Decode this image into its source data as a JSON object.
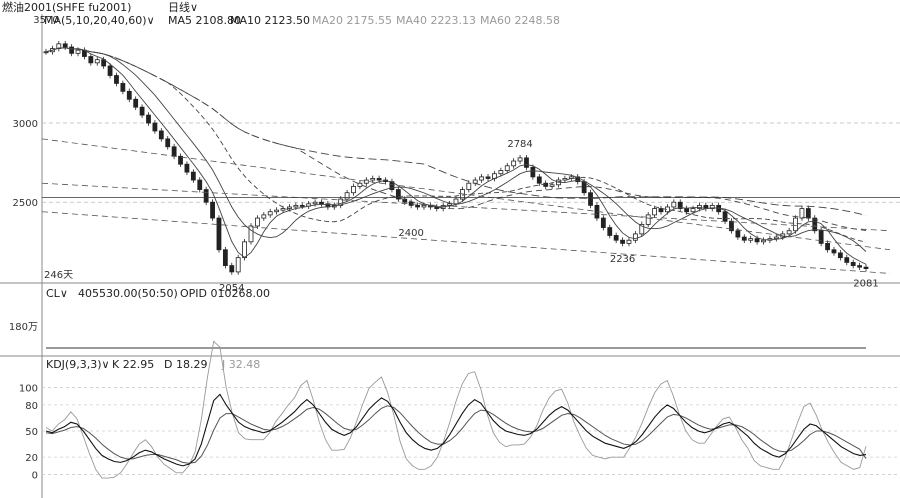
{
  "header": {
    "symbol": "燃油2001(SHFE fu2001)",
    "period": "日线",
    "ma_params": "MA(5,10,20,40,60)",
    "ma5": "MA5 2108.80",
    "ma10": "MA10 2123.50",
    "ma20": "MA20 2175.55",
    "ma40": "MA40 2223.13",
    "ma60": "MA60 2248.58"
  },
  "oi_panel": {
    "title": "CL",
    "value_text": "405530.00(50:50)",
    "opid": "OPID 010268.00",
    "unit_tick": "180万"
  },
  "kdj_panel": {
    "title": "KDJ(9,3,3)",
    "k": "K 22.95",
    "d": "D 18.29",
    "j": "J 32.48"
  },
  "chart_data": {
    "type": "line",
    "price_panel": {
      "ylim": [
        1990,
        3600
      ],
      "y_ticks": [
        3000,
        2500
      ],
      "annotations": [
        {
          "label": "3570",
          "value": 3570
        },
        {
          "label": "2054",
          "value": 2054
        },
        {
          "label": "2400",
          "value": 2400
        },
        {
          "label": "2784",
          "value": 2784
        },
        {
          "label": "2236",
          "value": 2236
        },
        {
          "label": "2081",
          "value": 2081
        },
        {
          "label": "246天",
          "value": null
        }
      ],
      "close": [
        3450,
        3470,
        3500,
        3480,
        3440,
        3460,
        3420,
        3380,
        3400,
        3360,
        3300,
        3250,
        3200,
        3150,
        3100,
        3050,
        3000,
        2950,
        2900,
        2850,
        2790,
        2740,
        2690,
        2640,
        2580,
        2500,
        2400,
        2200,
        2100,
        2060,
        2150,
        2250,
        2350,
        2400,
        2420,
        2440,
        2450,
        2460,
        2470,
        2480,
        2475,
        2490,
        2500,
        2490,
        2470,
        2480,
        2520,
        2560,
        2600,
        2620,
        2640,
        2650,
        2640,
        2630,
        2580,
        2520,
        2500,
        2480,
        2470,
        2480,
        2470,
        2460,
        2480,
        2490,
        2520,
        2580,
        2620,
        2640,
        2660,
        2650,
        2680,
        2700,
        2730,
        2760,
        2780,
        2720,
        2660,
        2620,
        2600,
        2610,
        2640,
        2650,
        2660,
        2630,
        2560,
        2480,
        2400,
        2340,
        2290,
        2260,
        2240,
        2260,
        2300,
        2360,
        2420,
        2460,
        2440,
        2470,
        2500,
        2460,
        2440,
        2460,
        2480,
        2460,
        2480,
        2440,
        2380,
        2320,
        2280,
        2260,
        2270,
        2250,
        2260,
        2270,
        2280,
        2300,
        2320,
        2400,
        2460,
        2400,
        2320,
        2240,
        2200,
        2180,
        2150,
        2120,
        2100,
        2090,
        2081
      ],
      "ma_values": {
        "MA5": 2108.8,
        "MA10": 2123.5,
        "MA20": 2175.55,
        "MA40": 2223.13,
        "MA60": 2248.58
      }
    },
    "oi_panel": {
      "ylim": [
        0,
        1800000
      ],
      "y_ticks_label": "180万",
      "open_interest": [
        240000,
        240000,
        240000,
        240000,
        240000,
        240000,
        240000,
        240000,
        240000,
        240000,
        240000,
        240000,
        240000,
        240000,
        240000,
        240000,
        240000,
        240000,
        240000,
        240000,
        240000,
        240000,
        240000,
        240000,
        240000,
        240000,
        240000,
        240000,
        240000,
        240000,
        240000,
        240000,
        240000,
        240000,
        240000,
        240000,
        240000,
        240000,
        240000,
        240000,
        240000,
        240000,
        240000,
        240000,
        240000,
        240000,
        240000,
        240000,
        240000,
        240000,
        240000,
        240000,
        240000,
        240000,
        240000,
        240000,
        240000,
        240000,
        240000,
        240000,
        240000,
        240000,
        240000,
        240000,
        240000,
        240000,
        240000,
        240000,
        240000,
        240000,
        240000,
        240000,
        240000,
        240000,
        240000,
        240000,
        240000,
        240000,
        240000,
        240000,
        240000,
        240000,
        240000,
        240000,
        240000,
        240000,
        240000,
        240000,
        240000,
        240000,
        240000,
        240000,
        240000,
        240000,
        240000,
        240000,
        240000,
        240000,
        240000,
        240000,
        240000,
        240000,
        240000,
        240000,
        240000,
        240000,
        240000,
        240000,
        240000,
        240000,
        240000,
        240000,
        240000,
        240000,
        240000,
        240000,
        240000,
        240000,
        240000,
        240000,
        240000,
        240000,
        240000,
        240000,
        240000,
        240000,
        240000,
        240000,
        240000
      ]
    },
    "kdj_panel": {
      "ylim": [
        -20,
        120
      ],
      "y_ticks": [
        100,
        80,
        50,
        20,
        0
      ],
      "K": [
        50,
        48,
        52,
        55,
        60,
        58,
        50,
        40,
        30,
        22,
        18,
        15,
        14,
        16,
        20,
        25,
        28,
        26,
        22,
        18,
        15,
        12,
        10,
        12,
        18,
        35,
        60,
        85,
        92,
        80,
        70,
        60,
        55,
        52,
        50,
        48,
        50,
        55,
        60,
        66,
        72,
        80,
        86,
        80,
        70,
        60,
        52,
        48,
        45,
        48,
        55,
        65,
        75,
        82,
        88,
        84,
        74,
        60,
        48,
        40,
        34,
        30,
        28,
        30,
        36,
        46,
        58,
        70,
        80,
        86,
        82,
        72,
        62,
        55,
        50,
        48,
        46,
        45,
        47,
        52,
        60,
        68,
        74,
        78,
        74,
        66,
        58,
        50,
        44,
        40,
        36,
        34,
        32,
        30,
        33,
        38,
        46,
        56,
        66,
        74,
        80,
        76,
        68,
        60,
        54,
        50,
        48,
        50,
        54,
        58,
        60,
        56,
        50,
        44,
        36,
        30,
        26,
        22,
        20,
        24,
        32,
        42,
        52,
        58,
        56,
        50,
        44,
        38,
        32,
        28,
        24,
        22,
        22.95
      ],
      "D": [
        48,
        47,
        49,
        51,
        54,
        55,
        53,
        48,
        42,
        35,
        29,
        24,
        20,
        18,
        18,
        20,
        22,
        23,
        23,
        21,
        19,
        17,
        14,
        13,
        14,
        21,
        34,
        51,
        65,
        70,
        70,
        66,
        62,
        58,
        55,
        52,
        51,
        52,
        55,
        59,
        64,
        69,
        75,
        77,
        75,
        70,
        64,
        58,
        53,
        51,
        52,
        57,
        63,
        70,
        76,
        79,
        77,
        71,
        63,
        55,
        48,
        42,
        37,
        35,
        35,
        39,
        45,
        53,
        62,
        70,
        74,
        73,
        69,
        64,
        59,
        55,
        52,
        50,
        49,
        50,
        53,
        58,
        63,
        68,
        70,
        69,
        65,
        60,
        55,
        50,
        45,
        41,
        38,
        35,
        34,
        35,
        39,
        45,
        52,
        59,
        66,
        69,
        68,
        65,
        61,
        57,
        54,
        52,
        53,
        55,
        57,
        57,
        55,
        51,
        46,
        40,
        35,
        30,
        27,
        26,
        28,
        33,
        39,
        46,
        50,
        50,
        48,
        45,
        41,
        37,
        33,
        29,
        18.29
      ],
      "J": [
        54,
        50,
        58,
        63,
        72,
        64,
        44,
        24,
        6,
        -4,
        -4,
        -3,
        2,
        12,
        24,
        35,
        40,
        32,
        20,
        12,
        7,
        2,
        2,
        10,
        26,
        63,
        112,
        153,
        146,
        100,
        70,
        48,
        41,
        40,
        40,
        40,
        48,
        61,
        70,
        80,
        88,
        102,
        108,
        86,
        60,
        40,
        28,
        28,
        29,
        42,
        61,
        81,
        99,
        106,
        112,
        94,
        68,
        38,
        18,
        10,
        6,
        6,
        10,
        20,
        38,
        60,
        84,
        104,
        116,
        118,
        98,
        70,
        48,
        37,
        32,
        34,
        34,
        35,
        43,
        56,
        74,
        88,
        96,
        98,
        82,
        60,
        44,
        30,
        22,
        20,
        18,
        20,
        20,
        20,
        31,
        44,
        60,
        78,
        94,
        104,
        108,
        90,
        68,
        50,
        40,
        36,
        36,
        46,
        56,
        64,
        66,
        54,
        40,
        30,
        16,
        10,
        8,
        6,
        6,
        20,
        40,
        60,
        78,
        82,
        68,
        50,
        36,
        24,
        14,
        10,
        6,
        8,
        32.48
      ]
    }
  }
}
